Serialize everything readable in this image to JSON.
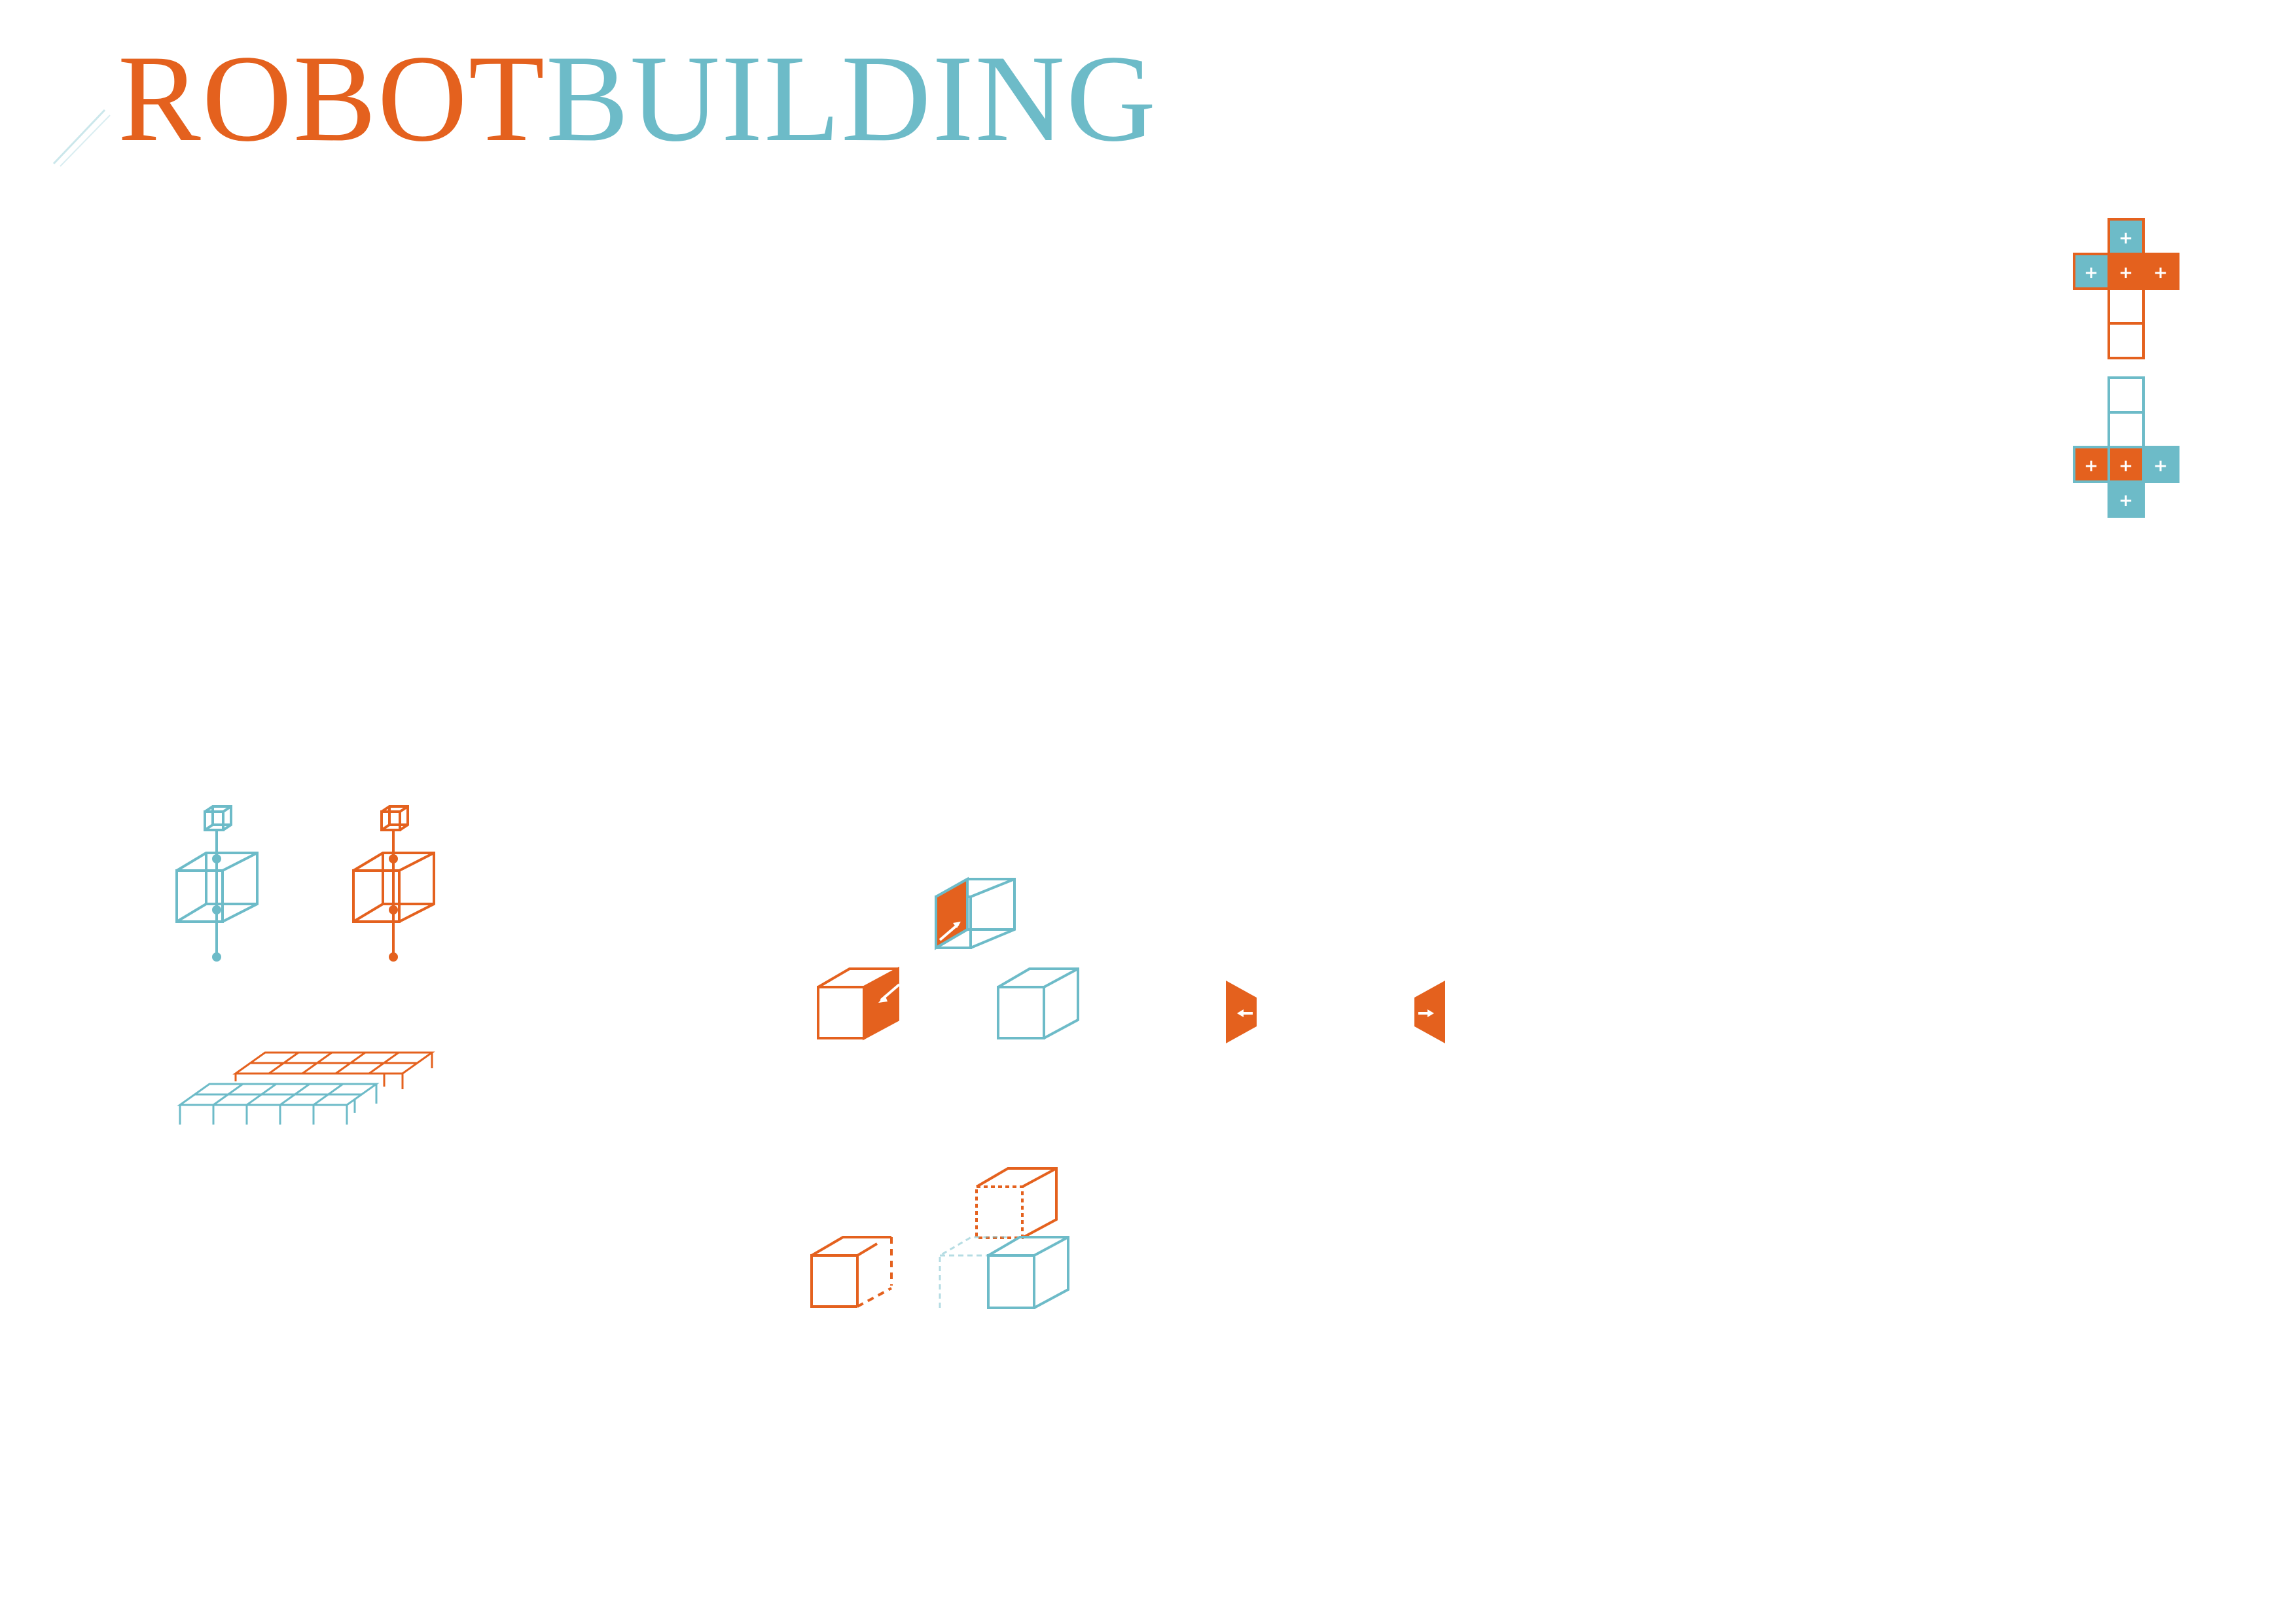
{
  "title": {
    "part1": "ROBOT",
    "part2": "BUILDING"
  },
  "colors": {
    "orange": "#E4611E",
    "blue": "#6DBBC8",
    "background": "#FFFFFF"
  },
  "legend": {
    "plus_symbol": "+"
  }
}
